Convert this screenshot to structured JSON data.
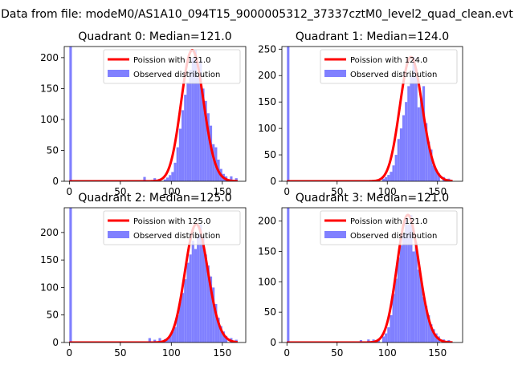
{
  "figure": {
    "suptitle": "Data from file: modeM0/AS1A10_094T15_9000005312_37337cztM0_level2_quad_clean.evt"
  },
  "colors": {
    "poisson_curve": "#ff0000",
    "histogram": "#8080ff",
    "axes": "#000000"
  },
  "chart_data": [
    {
      "type": "bar",
      "title": "Quadrant 0: Median=121.0",
      "xlabel": "",
      "ylabel": "",
      "xlim": [
        -5,
        173
      ],
      "ylim": [
        0,
        218
      ],
      "xticks": [
        0,
        50,
        100,
        150
      ],
      "yticks": [
        0,
        50,
        100,
        150,
        200
      ],
      "legend": "upper right",
      "series": [
        {
          "name": "Poission with 121.0",
          "kind": "line",
          "mean": 121.0,
          "x_range": [
            0,
            165
          ]
        },
        {
          "name": "Observed distribution",
          "kind": "histogram",
          "bin_width": 2.5,
          "bins": [
            {
              "x": 0,
              "y": 218
            },
            {
              "x": 72.5,
              "y": 7
            },
            {
              "x": 82.5,
              "y": 5
            },
            {
              "x": 87.5,
              "y": 4
            },
            {
              "x": 92.5,
              "y": 3
            },
            {
              "x": 95,
              "y": 6
            },
            {
              "x": 97.5,
              "y": 10
            },
            {
              "x": 100,
              "y": 15
            },
            {
              "x": 102.5,
              "y": 30
            },
            {
              "x": 105,
              "y": 55
            },
            {
              "x": 107.5,
              "y": 85
            },
            {
              "x": 110,
              "y": 115
            },
            {
              "x": 112.5,
              "y": 140
            },
            {
              "x": 115,
              "y": 160
            },
            {
              "x": 117.5,
              "y": 180
            },
            {
              "x": 120,
              "y": 200
            },
            {
              "x": 122.5,
              "y": 212
            },
            {
              "x": 125,
              "y": 170
            },
            {
              "x": 127.5,
              "y": 195
            },
            {
              "x": 130,
              "y": 150
            },
            {
              "x": 132.5,
              "y": 130
            },
            {
              "x": 135,
              "y": 110
            },
            {
              "x": 137.5,
              "y": 90
            },
            {
              "x": 140,
              "y": 60
            },
            {
              "x": 142.5,
              "y": 55
            },
            {
              "x": 145,
              "y": 35
            },
            {
              "x": 147.5,
              "y": 20
            },
            {
              "x": 150,
              "y": 12
            },
            {
              "x": 152.5,
              "y": 8
            },
            {
              "x": 157.5,
              "y": 8
            },
            {
              "x": 162.5,
              "y": 5
            }
          ]
        }
      ]
    },
    {
      "type": "bar",
      "title": "Quadrant 1: Median=124.0",
      "xlabel": "",
      "ylabel": "",
      "xlim": [
        -5,
        175
      ],
      "ylim": [
        0,
        255
      ],
      "xticks": [
        0,
        50,
        100,
        150
      ],
      "yticks": [
        0,
        50,
        100,
        150,
        200,
        250
      ],
      "legend": "upper right",
      "series": [
        {
          "name": "Poission with 124.0",
          "kind": "line",
          "mean": 124.0,
          "x_range": [
            0,
            165
          ]
        },
        {
          "name": "Observed distribution",
          "kind": "histogram",
          "bin_width": 2.5,
          "bins": [
            {
              "x": 0,
              "y": 255
            },
            {
              "x": 85,
              "y": 2
            },
            {
              "x": 90,
              "y": 3
            },
            {
              "x": 95,
              "y": 5
            },
            {
              "x": 97.5,
              "y": 8
            },
            {
              "x": 100,
              "y": 12
            },
            {
              "x": 102.5,
              "y": 18
            },
            {
              "x": 105,
              "y": 30
            },
            {
              "x": 107.5,
              "y": 50
            },
            {
              "x": 110,
              "y": 80
            },
            {
              "x": 112.5,
              "y": 100
            },
            {
              "x": 115,
              "y": 125
            },
            {
              "x": 117.5,
              "y": 150
            },
            {
              "x": 120,
              "y": 180
            },
            {
              "x": 122.5,
              "y": 200
            },
            {
              "x": 125,
              "y": 235
            },
            {
              "x": 127.5,
              "y": 210
            },
            {
              "x": 130,
              "y": 140
            },
            {
              "x": 132.5,
              "y": 155
            },
            {
              "x": 135,
              "y": 180
            },
            {
              "x": 137.5,
              "y": 110
            },
            {
              "x": 140,
              "y": 75
            },
            {
              "x": 142.5,
              "y": 60
            },
            {
              "x": 145,
              "y": 30
            },
            {
              "x": 147.5,
              "y": 22
            },
            {
              "x": 150,
              "y": 15
            },
            {
              "x": 155,
              "y": 8
            },
            {
              "x": 160,
              "y": 5
            }
          ]
        }
      ]
    },
    {
      "type": "bar",
      "title": "Quadrant 2: Median=125.0",
      "xlabel": "",
      "ylabel": "",
      "xlim": [
        -5,
        173
      ],
      "ylim": [
        0,
        245
      ],
      "xticks": [
        0,
        50,
        100,
        150
      ],
      "yticks": [
        0,
        50,
        100,
        150,
        200
      ],
      "legend": "upper right",
      "series": [
        {
          "name": "Poission with 125.0",
          "kind": "line",
          "mean": 125.0,
          "x_range": [
            0,
            165
          ]
        },
        {
          "name": "Observed distribution",
          "kind": "histogram",
          "bin_width": 2.5,
          "bins": [
            {
              "x": 0,
              "y": 245
            },
            {
              "x": 77.5,
              "y": 8
            },
            {
              "x": 82.5,
              "y": 5
            },
            {
              "x": 87.5,
              "y": 8
            },
            {
              "x": 92.5,
              "y": 6
            },
            {
              "x": 95,
              "y": 5
            },
            {
              "x": 97.5,
              "y": 12
            },
            {
              "x": 100,
              "y": 20
            },
            {
              "x": 102.5,
              "y": 28
            },
            {
              "x": 105,
              "y": 50
            },
            {
              "x": 107.5,
              "y": 75
            },
            {
              "x": 110,
              "y": 90
            },
            {
              "x": 112.5,
              "y": 115
            },
            {
              "x": 115,
              "y": 145
            },
            {
              "x": 117.5,
              "y": 160
            },
            {
              "x": 120,
              "y": 185
            },
            {
              "x": 122.5,
              "y": 170
            },
            {
              "x": 125,
              "y": 195
            },
            {
              "x": 127.5,
              "y": 215
            },
            {
              "x": 130,
              "y": 190
            },
            {
              "x": 132.5,
              "y": 160
            },
            {
              "x": 135,
              "y": 140
            },
            {
              "x": 137.5,
              "y": 120
            },
            {
              "x": 140,
              "y": 100
            },
            {
              "x": 142.5,
              "y": 70
            },
            {
              "x": 145,
              "y": 45
            },
            {
              "x": 147.5,
              "y": 30
            },
            {
              "x": 150,
              "y": 20
            },
            {
              "x": 152.5,
              "y": 12
            },
            {
              "x": 157.5,
              "y": 8
            },
            {
              "x": 162.5,
              "y": 5
            }
          ]
        }
      ]
    },
    {
      "type": "bar",
      "title": "Quadrant 3: Median=121.0",
      "xlabel": "",
      "ylabel": "",
      "xlim": [
        -5,
        175
      ],
      "ylim": [
        0,
        222
      ],
      "xticks": [
        0,
        50,
        100,
        150
      ],
      "yticks": [
        0,
        50,
        100,
        150,
        200
      ],
      "legend": "upper right",
      "series": [
        {
          "name": "Poission with 121.0",
          "kind": "line",
          "mean": 121.0,
          "x_range": [
            0,
            165
          ]
        },
        {
          "name": "Observed distribution",
          "kind": "histogram",
          "bin_width": 2.5,
          "bins": [
            {
              "x": 0,
              "y": 222
            },
            {
              "x": 65,
              "y": 2
            },
            {
              "x": 72.5,
              "y": 4
            },
            {
              "x": 80,
              "y": 5
            },
            {
              "x": 85,
              "y": 5
            },
            {
              "x": 90,
              "y": 6
            },
            {
              "x": 95,
              "y": 10
            },
            {
              "x": 97.5,
              "y": 15
            },
            {
              "x": 100,
              "y": 25
            },
            {
              "x": 102.5,
              "y": 45
            },
            {
              "x": 105,
              "y": 80
            },
            {
              "x": 107.5,
              "y": 105
            },
            {
              "x": 110,
              "y": 140
            },
            {
              "x": 112.5,
              "y": 160
            },
            {
              "x": 115,
              "y": 178
            },
            {
              "x": 117.5,
              "y": 205
            },
            {
              "x": 120,
              "y": 195
            },
            {
              "x": 122.5,
              "y": 210
            },
            {
              "x": 125,
              "y": 150
            },
            {
              "x": 127.5,
              "y": 165
            },
            {
              "x": 130,
              "y": 120
            },
            {
              "x": 132.5,
              "y": 105
            },
            {
              "x": 135,
              "y": 75
            },
            {
              "x": 137.5,
              "y": 60
            },
            {
              "x": 140,
              "y": 45
            },
            {
              "x": 142.5,
              "y": 30
            },
            {
              "x": 145,
              "y": 22
            },
            {
              "x": 147.5,
              "y": 15
            },
            {
              "x": 150,
              "y": 10
            },
            {
              "x": 155,
              "y": 5
            },
            {
              "x": 160,
              "y": 4
            }
          ]
        }
      ]
    }
  ]
}
